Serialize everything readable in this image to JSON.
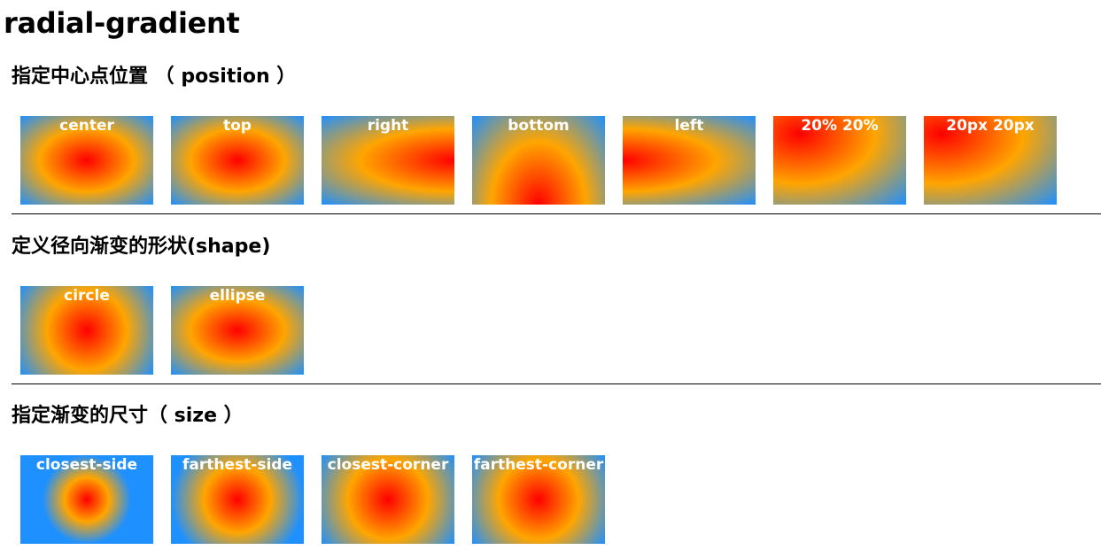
{
  "title": "radial-gradient",
  "colors": {
    "inner": "#ff0000",
    "middle": "#ffa500",
    "outer": "#1e90ff"
  },
  "sections": [
    {
      "heading": "指定中心点位置 （ position ）",
      "boxes": [
        "center",
        "top",
        "right",
        "bottom",
        "left",
        "20% 20%",
        "20px 20px"
      ]
    },
    {
      "heading": "定义径向渐变的形状(shape)",
      "boxes": [
        "circle",
        "ellipse"
      ]
    },
    {
      "heading": "指定渐变的尺寸（ size ）",
      "boxes": [
        "closest-side",
        "farthest-side",
        "closest-corner",
        "farthest-corner"
      ]
    }
  ]
}
